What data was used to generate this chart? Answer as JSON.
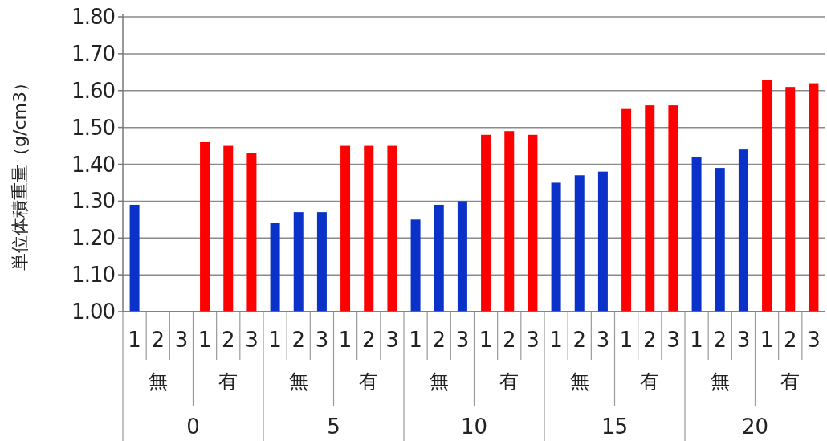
{
  "chart_data": {
    "type": "bar",
    "ylabel": "単位体積重量（g/cm3）",
    "categories": [
      "1",
      "2",
      "3",
      "1",
      "2",
      "3",
      "1",
      "2",
      "3",
      "1",
      "2",
      "3",
      "1",
      "2",
      "3",
      "1",
      "2",
      "3",
      "1",
      "2",
      "3",
      "1",
      "2",
      "3",
      "1",
      "2",
      "3",
      "1",
      "2",
      "3"
    ],
    "values": [
      1.29,
      null,
      null,
      1.46,
      1.45,
      1.43,
      1.24,
      1.27,
      1.27,
      1.45,
      1.45,
      1.45,
      1.25,
      1.29,
      1.3,
      1.48,
      1.49,
      1.48,
      1.35,
      1.37,
      1.38,
      1.55,
      1.56,
      1.56,
      1.42,
      1.39,
      1.44,
      1.63,
      1.61,
      1.62
    ],
    "colors": [
      "#0a32c8",
      null,
      null,
      "#ff0000",
      "#ff0000",
      "#ff0000",
      "#0a32c8",
      "#0a32c8",
      "#0a32c8",
      "#ff0000",
      "#ff0000",
      "#ff0000",
      "#0a32c8",
      "#0a32c8",
      "#0a32c8",
      "#ff0000",
      "#ff0000",
      "#ff0000",
      "#0a32c8",
      "#0a32c8",
      "#0a32c8",
      "#ff0000",
      "#ff0000",
      "#ff0000",
      "#0a32c8",
      "#0a32c8",
      "#0a32c8",
      "#ff0000",
      "#ff0000",
      "#ff0000"
    ],
    "annotations": [
      "無",
      "有",
      "無",
      "有",
      "無",
      "有",
      "無",
      "有",
      "無",
      "有",
      "0",
      "5",
      "10",
      "15",
      "20"
    ],
    "ylim": [
      1.0,
      1.8
    ],
    "yticks": [
      {
        "value": 1.0,
        "label": "1.00"
      },
      {
        "value": 1.1,
        "label": "1.10"
      },
      {
        "value": 1.2,
        "label": "1.20"
      },
      {
        "value": 1.3,
        "label": "1.30"
      },
      {
        "value": 1.4,
        "label": "1.40"
      },
      {
        "value": 1.5,
        "label": "1.50"
      },
      {
        "value": 1.6,
        "label": "1.60"
      },
      {
        "value": 1.7,
        "label": "1.70"
      },
      {
        "value": 1.8,
        "label": "1.80"
      }
    ],
    "grid": "y"
  }
}
